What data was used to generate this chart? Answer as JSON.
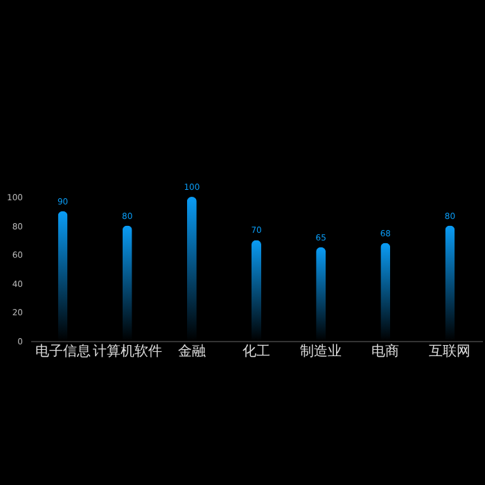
{
  "chart_data": {
    "type": "bar",
    "categories": [
      "电子信息",
      "计算机软件",
      "金融",
      "化工",
      "制造业",
      "电商",
      "互联网"
    ],
    "values": [
      90,
      80,
      100,
      70,
      65,
      68,
      80
    ],
    "color": "#0a9cf5",
    "data_labels": true,
    "ylim": [
      0,
      100
    ],
    "yticks": [
      0,
      20,
      40,
      60,
      80,
      100
    ],
    "grid": false
  }
}
